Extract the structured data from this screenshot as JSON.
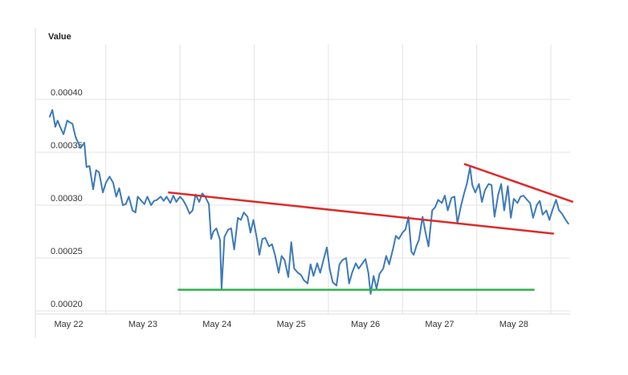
{
  "chart_data": {
    "type": "line",
    "title": "Value",
    "xlim": [
      21.55,
      28.76
    ],
    "ylim": [
      0.0002,
      0.00047
    ],
    "xticks": [
      {
        "value": 22,
        "label": "May 22"
      },
      {
        "value": 23,
        "label": "May 23"
      },
      {
        "value": 24,
        "label": "May 24"
      },
      {
        "value": 25,
        "label": "May 25"
      },
      {
        "value": 26,
        "label": "May 26"
      },
      {
        "value": 27,
        "label": "May 27"
      },
      {
        "value": 28,
        "label": "May 28"
      }
    ],
    "yticks": [
      {
        "value": 0.0002,
        "label": "0.00020"
      },
      {
        "value": 0.00025,
        "label": "0.00025"
      },
      {
        "value": 0.0003,
        "label": "0.00030"
      },
      {
        "value": 0.00035,
        "label": "0.00035"
      },
      {
        "value": 0.0004,
        "label": "0.00040"
      }
    ],
    "grid": true,
    "series": [
      {
        "color": "#3d7ab8",
        "x": [
          21.74,
          21.78,
          21.82,
          21.85,
          21.89,
          21.93,
          21.98,
          22.02,
          22.05,
          22.09,
          22.12,
          22.16,
          22.21,
          22.24,
          22.28,
          22.33,
          22.37,
          22.41,
          22.46,
          22.5,
          22.55,
          22.6,
          22.64,
          22.68,
          22.73,
          22.77,
          22.81,
          22.86,
          22.9,
          22.93,
          22.98,
          23.02,
          23.06,
          23.11,
          23.15,
          23.19,
          23.24,
          23.28,
          23.32,
          23.37,
          23.41,
          23.45,
          23.5,
          23.54,
          23.58,
          23.63,
          23.67,
          23.71,
          23.76,
          23.8,
          23.84,
          23.89,
          23.92,
          23.95,
          23.99,
          24.04,
          24.06,
          24.1,
          24.15,
          24.19,
          24.23,
          24.28,
          24.32,
          24.36,
          24.41,
          24.45,
          24.49,
          24.54,
          24.57,
          24.61,
          24.65,
          24.7,
          24.74,
          24.78,
          24.83,
          24.87,
          24.91,
          24.96,
          25.0,
          25.04,
          25.09,
          25.13,
          25.17,
          25.22,
          25.26,
          25.3,
          25.35,
          25.39,
          25.43,
          25.48,
          25.52,
          25.56,
          25.61,
          25.65,
          25.69,
          25.74,
          25.78,
          25.82,
          25.87,
          25.91,
          25.95,
          26.0,
          26.04,
          26.07,
          26.11,
          26.15,
          26.19,
          26.24,
          26.28,
          26.32,
          26.37,
          26.41,
          26.45,
          26.5,
          26.54,
          26.58,
          26.62,
          26.65,
          26.69,
          26.72,
          26.77,
          26.81,
          26.85,
          26.9,
          26.94,
          26.98,
          27.03,
          27.07,
          27.11,
          27.16,
          27.2,
          27.24,
          27.29,
          27.33,
          27.37,
          27.41,
          27.44,
          27.48,
          27.53,
          27.57,
          27.61,
          27.66,
          27.7,
          27.74,
          27.79,
          27.83,
          27.87,
          27.92,
          27.96,
          28.0,
          28.05,
          28.09,
          28.13,
          28.18,
          28.22,
          28.26,
          28.31,
          28.35,
          28.39,
          28.44,
          28.48,
          28.52,
          28.57,
          28.61,
          28.65,
          28.7,
          28.74
        ],
        "values": [
          0.000383,
          0.00039,
          0.000374,
          0.00038,
          0.000373,
          0.000367,
          0.00038,
          0.000378,
          0.000377,
          0.000365,
          0.00036,
          0.000354,
          0.000359,
          0.000336,
          0.000337,
          0.000315,
          0.000333,
          0.000331,
          0.000312,
          0.000321,
          0.000327,
          0.000321,
          0.000308,
          0.000316,
          0.0003,
          0.000301,
          0.000308,
          0.000295,
          0.000293,
          0.000308,
          0.000304,
          0.000301,
          0.000308,
          0.0003,
          0.000304,
          0.000305,
          0.000308,
          0.000304,
          0.000308,
          0.000302,
          0.000309,
          0.000303,
          0.000308,
          0.000305,
          0.0003,
          0.000292,
          0.000295,
          0.00031,
          0.000303,
          0.000311,
          0.000308,
          0.000301,
          0.000268,
          0.000275,
          0.000278,
          0.000267,
          0.000221,
          0.00027,
          0.000277,
          0.000278,
          0.000258,
          0.000288,
          0.000286,
          0.000293,
          0.000289,
          0.000274,
          0.000286,
          0.000267,
          0.000253,
          0.000268,
          0.000269,
          0.000261,
          0.000263,
          0.000253,
          0.000236,
          0.000252,
          0.000248,
          0.000232,
          0.000265,
          0.00024,
          0.000236,
          0.000234,
          0.000229,
          0.000226,
          0.000244,
          0.000233,
          0.000245,
          0.000236,
          0.000247,
          0.00026,
          0.000239,
          0.000227,
          0.000224,
          0.000244,
          0.000248,
          0.00025,
          0.000226,
          0.000236,
          0.000245,
          0.00024,
          0.000244,
          0.000249,
          0.000236,
          0.000216,
          0.000233,
          0.000221,
          0.000235,
          0.00024,
          0.000252,
          0.000244,
          0.000258,
          0.000271,
          0.000268,
          0.000274,
          0.000277,
          0.000289,
          0.000256,
          0.000253,
          0.000262,
          0.000267,
          0.000289,
          0.000274,
          0.000261,
          0.000295,
          0.000298,
          0.000305,
          0.000302,
          0.000309,
          0.000295,
          0.000307,
          0.000308,
          0.000283,
          0.0003,
          0.000311,
          0.000321,
          0.000336,
          0.000319,
          0.000312,
          0.00032,
          0.000303,
          0.000314,
          0.00032,
          0.000319,
          0.000289,
          0.00031,
          0.00032,
          0.000295,
          0.000318,
          0.000288,
          0.000306,
          0.000302,
          0.000308,
          0.000309,
          0.000305,
          0.000302,
          0.000288,
          0.0003,
          0.000304,
          0.000291,
          0.000295,
          0.000286,
          0.000295,
          0.000305,
          0.000295,
          0.000292,
          0.000286,
          0.000282
        ]
      }
    ],
    "trendlines": [
      {
        "color": "#dd2a2a",
        "x": [
          23.34,
          28.54
        ],
        "values": [
          0.000312,
          0.000273
        ]
      },
      {
        "color": "#dd2a2a",
        "x": [
          27.33,
          28.8
        ],
        "values": [
          0.000339,
          0.000303
        ]
      },
      {
        "color": "#2db34a",
        "x": [
          23.47,
          28.28
        ],
        "values": [
          0.00022,
          0.00022
        ]
      }
    ]
  }
}
